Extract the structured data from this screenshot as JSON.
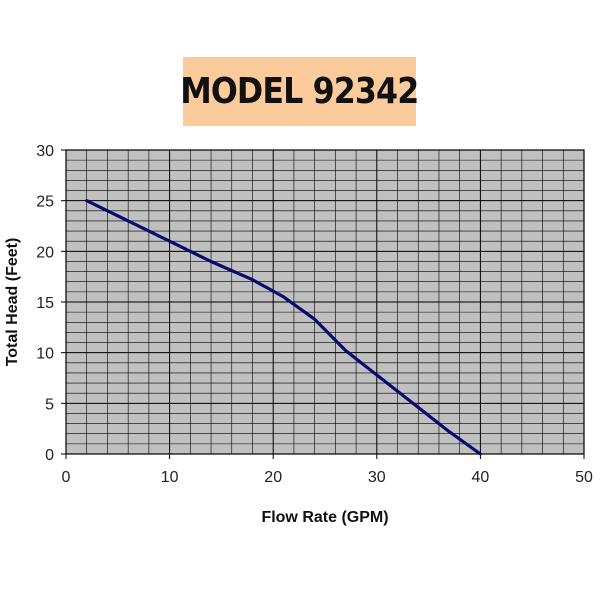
{
  "header": {
    "title": "MODEL 92342",
    "title_bg": "#fbcb9c"
  },
  "chart_data": {
    "type": "line",
    "title": "MODEL 92342",
    "xlabel": "Flow Rate (GPM)",
    "ylabel": "Total Head (Feet)",
    "xlim": [
      0,
      50
    ],
    "ylim": [
      0,
      30
    ],
    "x_ticks": [
      "0",
      "10",
      "20",
      "30",
      "40",
      "50"
    ],
    "y_ticks": [
      "0",
      "5",
      "10",
      "15",
      "20",
      "25",
      "30"
    ],
    "grid": true,
    "plot_background": "#c0c0c0",
    "grid_color": "#000000",
    "series": [
      {
        "color": "#0a0a6e",
        "x": [
          2,
          6,
          10,
          14,
          18,
          21,
          24,
          27,
          30,
          34,
          37,
          40
        ],
        "y": [
          25,
          23,
          21,
          19,
          17.2,
          15.5,
          13.3,
          10.2,
          7.8,
          4.6,
          2.2,
          0
        ]
      }
    ]
  }
}
